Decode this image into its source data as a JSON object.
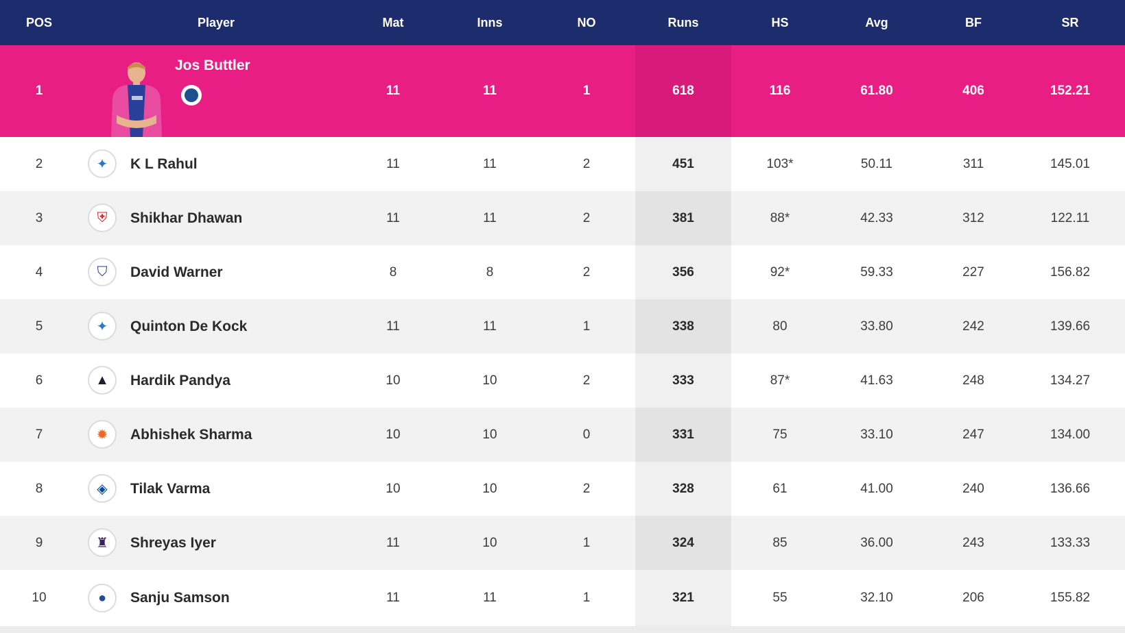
{
  "columns": [
    "POS",
    "Player",
    "Mat",
    "Inns",
    "NO",
    "Runs",
    "HS",
    "Avg",
    "BF",
    "SR"
  ],
  "colors": {
    "header_bg": "#1c2c6c",
    "top_row_bg": "#e91e84",
    "alt_row_bg": "#f2f2f2"
  },
  "rows": [
    {
      "pos": "1",
      "player": "Jos Buttler",
      "team_icon": "rr-logo",
      "mat": "11",
      "inns": "11",
      "no": "1",
      "runs": "618",
      "hs": "116",
      "avg": "61.80",
      "bf": "406",
      "sr": "152.21"
    },
    {
      "pos": "2",
      "player": "K L Rahul",
      "team_icon": "lsg-logo",
      "mat": "11",
      "inns": "11",
      "no": "2",
      "runs": "451",
      "hs": "103*",
      "avg": "50.11",
      "bf": "311",
      "sr": "145.01"
    },
    {
      "pos": "3",
      "player": "Shikhar Dhawan",
      "team_icon": "pbks-logo",
      "mat": "11",
      "inns": "11",
      "no": "2",
      "runs": "381",
      "hs": "88*",
      "avg": "42.33",
      "bf": "312",
      "sr": "122.11"
    },
    {
      "pos": "4",
      "player": "David Warner",
      "team_icon": "dc-logo",
      "mat": "8",
      "inns": "8",
      "no": "2",
      "runs": "356",
      "hs": "92*",
      "avg": "59.33",
      "bf": "227",
      "sr": "156.82"
    },
    {
      "pos": "5",
      "player": "Quinton De Kock",
      "team_icon": "lsg-logo",
      "mat": "11",
      "inns": "11",
      "no": "1",
      "runs": "338",
      "hs": "80",
      "avg": "33.80",
      "bf": "242",
      "sr": "139.66"
    },
    {
      "pos": "6",
      "player": "Hardik Pandya",
      "team_icon": "gt-logo",
      "mat": "10",
      "inns": "10",
      "no": "2",
      "runs": "333",
      "hs": "87*",
      "avg": "41.63",
      "bf": "248",
      "sr": "134.27"
    },
    {
      "pos": "7",
      "player": "Abhishek Sharma",
      "team_icon": "srh-logo",
      "mat": "10",
      "inns": "10",
      "no": "0",
      "runs": "331",
      "hs": "75",
      "avg": "33.10",
      "bf": "247",
      "sr": "134.00"
    },
    {
      "pos": "8",
      "player": "Tilak Varma",
      "team_icon": "mi-logo",
      "mat": "10",
      "inns": "10",
      "no": "2",
      "runs": "328",
      "hs": "61",
      "avg": "41.00",
      "bf": "240",
      "sr": "136.66"
    },
    {
      "pos": "9",
      "player": "Shreyas Iyer",
      "team_icon": "kkr-logo",
      "mat": "11",
      "inns": "10",
      "no": "1",
      "runs": "324",
      "hs": "85",
      "avg": "36.00",
      "bf": "243",
      "sr": "133.33"
    },
    {
      "pos": "10",
      "player": "Sanju Samson",
      "team_icon": "rr-logo",
      "mat": "11",
      "inns": "11",
      "no": "1",
      "runs": "321",
      "hs": "55",
      "avg": "32.10",
      "bf": "206",
      "sr": "155.82"
    }
  ]
}
